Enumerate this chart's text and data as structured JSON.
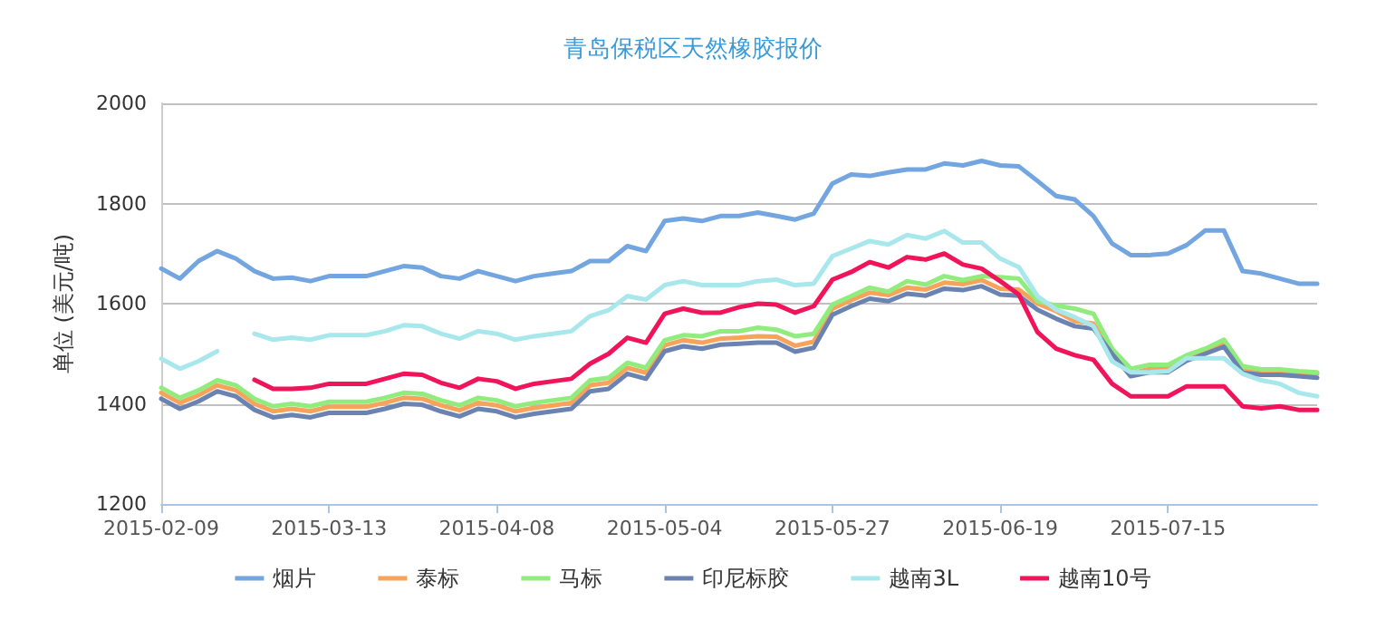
{
  "chart_data": {
    "type": "line",
    "title": "青岛保税区天然橡胶报价",
    "ylabel": "单位 (美元/吨)",
    "categories": [
      "2015-02-09",
      null,
      null,
      null,
      null,
      null,
      null,
      null,
      null,
      "2015-03-13",
      null,
      null,
      null,
      null,
      null,
      null,
      null,
      null,
      "2015-04-08",
      null,
      null,
      null,
      null,
      null,
      null,
      null,
      null,
      "2015-05-04",
      null,
      null,
      null,
      null,
      null,
      null,
      null,
      null,
      "2015-05-27",
      null,
      null,
      null,
      null,
      null,
      null,
      null,
      null,
      "2015-06-19",
      null,
      null,
      null,
      null,
      null,
      null,
      null,
      null,
      "2015-07-15",
      null,
      null,
      null,
      null,
      null,
      null,
      null,
      null
    ],
    "ylim": [
      1200,
      2000
    ],
    "yticks": [
      1200,
      1400,
      1600,
      1800,
      2000
    ],
    "grid": "y",
    "legend": "bottom",
    "marker": "none",
    "line_style": "solid",
    "series": [
      {
        "name": "烟片",
        "color": "#73a6e0",
        "values": [
          1670,
          1650,
          1685,
          1705,
          1690,
          1665,
          1650,
          1652,
          1645,
          1655,
          1655,
          1655,
          1665,
          1675,
          1672,
          1655,
          1650,
          1665,
          1655,
          1645,
          1655,
          1660,
          1665,
          1685,
          1685,
          1715,
          1705,
          1765,
          1770,
          1765,
          1775,
          1775,
          1782,
          1775,
          1768,
          1780,
          1840,
          1858,
          1855,
          1862,
          1868,
          1868,
          1880,
          1876,
          1885,
          1876,
          1874,
          1845,
          1815,
          1808,
          1775,
          1720,
          1697,
          1697,
          1700,
          1717,
          1746,
          1746,
          1665,
          1660,
          1650,
          1640,
          1640
        ]
      },
      {
        "name": "泰标",
        "color": "#f7a35c",
        "values": [
          1422,
          1402,
          1417,
          1437,
          1427,
          1400,
          1385,
          1390,
          1385,
          1394,
          1394,
          1394,
          1402,
          1412,
          1410,
          1397,
          1387,
          1402,
          1397,
          1385,
          1392,
          1397,
          1402,
          1437,
          1442,
          1472,
          1462,
          1517,
          1527,
          1522,
          1530,
          1532,
          1535,
          1534,
          1516,
          1524,
          1590,
          1607,
          1622,
          1617,
          1632,
          1628,
          1642,
          1639,
          1647,
          1630,
          1628,
          1600,
          1585,
          1565,
          1560,
          1505,
          1460,
          1470,
          1470,
          1492,
          1505,
          1522,
          1466,
          1462,
          1462,
          1463,
          1460
        ]
      },
      {
        "name": "马标",
        "color": "#90ed7d",
        "values": [
          1432,
          1412,
          1427,
          1447,
          1437,
          1410,
          1395,
          1400,
          1395,
          1404,
          1404,
          1404,
          1412,
          1422,
          1420,
          1407,
          1397,
          1412,
          1407,
          1395,
          1402,
          1407,
          1412,
          1447,
          1452,
          1482,
          1472,
          1527,
          1537,
          1535,
          1545,
          1545,
          1552,
          1548,
          1535,
          1540,
          1598,
          1615,
          1632,
          1624,
          1645,
          1638,
          1655,
          1647,
          1655,
          1653,
          1650,
          1605,
          1596,
          1590,
          1580,
          1510,
          1470,
          1478,
          1478,
          1497,
          1510,
          1528,
          1475,
          1469,
          1469,
          1465,
          1463
        ]
      },
      {
        "name": "印尼标胶",
        "color": "#6b83b0",
        "values": [
          1410,
          1390,
          1405,
          1425,
          1415,
          1388,
          1373,
          1378,
          1373,
          1382,
          1382,
          1382,
          1390,
          1400,
          1398,
          1385,
          1375,
          1390,
          1385,
          1373,
          1380,
          1385,
          1390,
          1425,
          1430,
          1460,
          1450,
          1505,
          1515,
          1510,
          1518,
          1520,
          1522,
          1522,
          1504,
          1512,
          1578,
          1595,
          1610,
          1605,
          1620,
          1616,
          1630,
          1627,
          1635,
          1618,
          1616,
          1588,
          1570,
          1555,
          1550,
          1500,
          1455,
          1463,
          1463,
          1486,
          1500,
          1514,
          1462,
          1458,
          1458,
          1455,
          1452
        ]
      },
      {
        "name": "越南3L",
        "color": "#a8e8ec",
        "values": [
          1490,
          1470,
          1485,
          1505,
          null,
          1540,
          1528,
          1532,
          1528,
          1537,
          1537,
          1537,
          1545,
          1557,
          1555,
          1540,
          1530,
          1545,
          1540,
          1528,
          1535,
          1540,
          1545,
          1575,
          1587,
          1615,
          1608,
          1637,
          1645,
          1637,
          1637,
          1637,
          1645,
          1648,
          1637,
          1640,
          1695,
          1710,
          1725,
          1718,
          1737,
          1730,
          1745,
          1722,
          1722,
          1690,
          1673,
          1615,
          1588,
          1573,
          1555,
          1485,
          1463,
          1463,
          1465,
          1491,
          1491,
          1491,
          1460,
          1447,
          1440,
          1422,
          1415
        ]
      },
      {
        "name": "越南10号",
        "color": "#f0145a",
        "values": [
          null,
          null,
          null,
          null,
          null,
          1448,
          1430,
          1430,
          1432,
          1440,
          1440,
          1440,
          1450,
          1460,
          1458,
          1442,
          1432,
          1450,
          1445,
          1430,
          1440,
          1445,
          1450,
          1480,
          1500,
          1532,
          1522,
          1580,
          1590,
          1582,
          1582,
          1593,
          1600,
          1598,
          1582,
          1595,
          1648,
          1663,
          1683,
          1672,
          1693,
          1688,
          1700,
          1678,
          1670,
          1645,
          1618,
          1543,
          1510,
          1497,
          1488,
          1440,
          1415,
          1415,
          1415,
          1435,
          1435,
          1435,
          1395,
          1391,
          1395,
          1388,
          1388
        ]
      }
    ]
  }
}
